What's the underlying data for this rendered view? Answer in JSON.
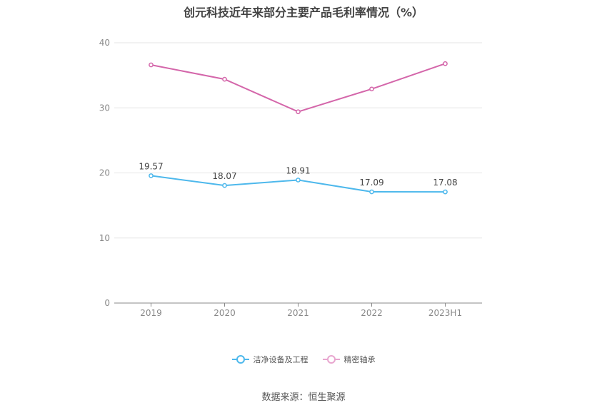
{
  "chart_data": {
    "type": "line",
    "title": "创元科技近年来部分主要产品毛利率情况（%）",
    "categories": [
      "2019",
      "2020",
      "2021",
      "2022",
      "2023H1"
    ],
    "ylim": [
      0,
      40
    ],
    "yticks": [
      0,
      10,
      20,
      30,
      40
    ],
    "grid": true,
    "legend_position": "bottom-center",
    "series": [
      {
        "name": "洁净设备及工程",
        "color": "#4db8ec",
        "values": [
          19.57,
          18.07,
          18.91,
          17.09,
          17.08
        ],
        "labels": [
          "19.57",
          "18.07",
          "18.91",
          "17.09",
          "17.08"
        ]
      },
      {
        "name": "精密轴承",
        "color": "#d466aa",
        "values": [
          36.6,
          34.4,
          29.4,
          32.9,
          36.8
        ]
      }
    ]
  },
  "legend": [
    {
      "label": "洁净设备及工程",
      "color": "#4db8ec"
    },
    {
      "label": "精密轴承",
      "color": "#e8a6cf"
    }
  ],
  "source": "数据来源：恒生聚源"
}
